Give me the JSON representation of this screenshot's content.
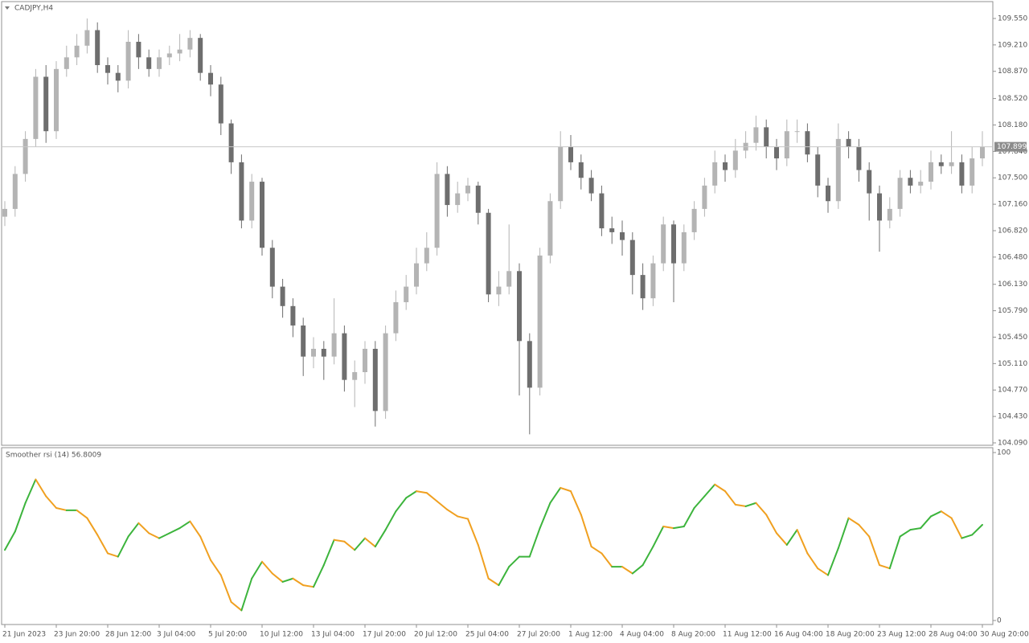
{
  "chart_data": [
    {
      "type": "candlestick",
      "title": "CADJPY,H4",
      "categories": [
        "21 Jun 2023",
        null,
        null,
        null,
        null,
        "23 Jun 20:00",
        null,
        null,
        null,
        null,
        "28 Jun 12:00",
        null,
        null,
        null,
        null,
        "3 Jul 04:00",
        null,
        null,
        null,
        null,
        "5 Jul 20:00",
        null,
        null,
        null,
        null,
        "10 Jul 12:00",
        null,
        null,
        null,
        null,
        "13 Jul 04:00",
        null,
        null,
        null,
        null,
        "17 Jul 20:00",
        null,
        null,
        null,
        null,
        "20 Jul 12:00",
        null,
        null,
        null,
        null,
        "25 Jul 04:00",
        null,
        null,
        null,
        null,
        "27 Jul 20:00",
        null,
        null,
        null,
        null,
        "1 Aug 12:00",
        null,
        null,
        null,
        null,
        "4 Aug 04:00",
        null,
        null,
        null,
        null,
        "8 Aug 20:00",
        null,
        null,
        null,
        null,
        "11 Aug 12:00",
        null,
        null,
        null,
        null,
        "16 Aug 04:00",
        null,
        null,
        null,
        null,
        "18 Aug 20:00",
        null,
        null,
        null,
        null,
        "23 Aug 12:00",
        null,
        null,
        null,
        null,
        "28 Aug 04:00",
        null,
        null,
        null,
        null,
        "30 Aug 20:00"
      ],
      "open": [
        107,
        107.1,
        107.55,
        108,
        108.8,
        108.1,
        108.9,
        109.05,
        109.2,
        109.4,
        108.95,
        108.85,
        108.75,
        109.25,
        109.05,
        108.9,
        109.05,
        109.1,
        109.15,
        109.3,
        108.85,
        108.7,
        108.2,
        107.7,
        106.95,
        107.45,
        106.6,
        106.1,
        105.85,
        105.6,
        105.2,
        105.3,
        105.2,
        105.5,
        104.9,
        105,
        105.3,
        104.5,
        105.5,
        105.9,
        106.1,
        106.4,
        106.6,
        107.55,
        107.15,
        107.3,
        107.4,
        107.05,
        106,
        106.1,
        106.3,
        105.4,
        104.8,
        106.5,
        107.2,
        107.9,
        107.7,
        107.5,
        107.3,
        106.85,
        106.8,
        106.7,
        106.25,
        105.95,
        106.4,
        106.9,
        106.4,
        106.8,
        107.1,
        107.4,
        107.7,
        107.6,
        107.85,
        107.95,
        108.15,
        107.9,
        107.75,
        108.1,
        108.1,
        107.8,
        107.4,
        107.2,
        108,
        107.9,
        107.6,
        107.3,
        106.95,
        107.1,
        107.5,
        107.4,
        107.45,
        107.7,
        107.65,
        107.7,
        107.4,
        107.75
      ],
      "high": [
        107.2,
        107.65,
        108.1,
        108.9,
        108.95,
        109,
        109.2,
        109.35,
        109.55,
        109.5,
        109.05,
        108.95,
        109.4,
        109.35,
        109.15,
        109.15,
        109.2,
        109.35,
        109.4,
        109.35,
        108.95,
        108.8,
        108.25,
        107.8,
        107.55,
        107.5,
        106.7,
        106.2,
        105.95,
        105.7,
        105.45,
        105.4,
        105.95,
        105.6,
        105.15,
        105.4,
        105.4,
        105.6,
        106.05,
        106.25,
        106.6,
        106.8,
        107.7,
        107.65,
        107.45,
        107.5,
        107.45,
        107.1,
        106.3,
        106.9,
        106.4,
        105.5,
        106.6,
        107.3,
        108.1,
        108.05,
        107.8,
        107.6,
        107.4,
        107,
        106.95,
        106.8,
        106.4,
        106.5,
        107,
        106.95,
        106.9,
        107.2,
        107.5,
        107.85,
        107.8,
        108,
        108.1,
        108.3,
        108.25,
        108,
        108.25,
        108.25,
        108.2,
        107.9,
        107.5,
        108.2,
        108.1,
        108,
        107.7,
        107.4,
        107.25,
        107.6,
        107.6,
        107.6,
        107.85,
        107.8,
        108.1,
        107.8,
        107.9,
        108.1
      ],
      "low": [
        106.88,
        107,
        107.45,
        107.9,
        107.95,
        108,
        108.8,
        108.95,
        109.1,
        108.85,
        108.7,
        108.6,
        108.65,
        108.9,
        108.8,
        108.8,
        108.95,
        109,
        109.05,
        108.75,
        108.55,
        108.05,
        107.55,
        106.85,
        106.85,
        106.5,
        105.95,
        105.7,
        105.45,
        104.95,
        105.05,
        104.9,
        105.1,
        104.75,
        104.55,
        104.85,
        104.3,
        104.4,
        105.4,
        105.8,
        106,
        106.3,
        106.5,
        107,
        107.05,
        107.2,
        106.9,
        105.9,
        105.85,
        106,
        104.7,
        104.2,
        104.7,
        106.4,
        107.1,
        107.6,
        107.35,
        107.2,
        106.75,
        106.65,
        106.5,
        106,
        105.8,
        105.85,
        106.3,
        105.9,
        106.3,
        106.7,
        107,
        107.3,
        107.45,
        107.5,
        107.75,
        107.85,
        107.75,
        107.6,
        107.65,
        107.95,
        107.7,
        107.25,
        107.05,
        107.1,
        107.75,
        107.45,
        106.95,
        106.55,
        106.85,
        107,
        107.3,
        107.3,
        107.35,
        107.55,
        107.55,
        107.3,
        107.3,
        107.65
      ],
      "close": [
        107.1,
        107.55,
        108,
        108.8,
        108.1,
        108.9,
        109.05,
        109.2,
        109.4,
        108.95,
        108.85,
        108.75,
        109.25,
        109.05,
        108.9,
        109.05,
        109.1,
        109.15,
        109.3,
        108.85,
        108.7,
        108.2,
        107.7,
        106.95,
        107.45,
        106.6,
        106.1,
        105.85,
        105.6,
        105.2,
        105.3,
        105.2,
        105.5,
        104.9,
        105,
        105.3,
        104.5,
        105.5,
        105.9,
        106.1,
        106.4,
        106.6,
        107.55,
        107.15,
        107.3,
        107.4,
        107.05,
        106,
        106.1,
        106.3,
        105.4,
        104.8,
        106.5,
        107.2,
        107.9,
        107.7,
        107.5,
        107.3,
        106.85,
        106.8,
        106.7,
        106.25,
        105.95,
        106.4,
        106.9,
        106.4,
        106.8,
        107.1,
        107.4,
        107.7,
        107.6,
        107.85,
        107.95,
        108.15,
        107.9,
        107.75,
        108.1,
        108.1,
        107.8,
        107.4,
        107.2,
        108,
        107.9,
        107.6,
        107.3,
        106.95,
        107.1,
        107.5,
        107.4,
        107.45,
        107.7,
        107.65,
        107.7,
        107.4,
        107.75,
        107.9
      ],
      "up_color": "#b4b4b4",
      "down_color": "#6e6e6e",
      "last_price": 107.899,
      "ylim": [
        104.059,
        109.767
      ],
      "yticks": [
        {
          "value": 109.55,
          "label": "109.550"
        },
        {
          "value": 109.21,
          "label": "109.210"
        },
        {
          "value": 108.87,
          "label": "108.870"
        },
        {
          "value": 108.52,
          "label": "108.520"
        },
        {
          "value": 108.18,
          "label": "108.180"
        },
        {
          "value": 107.84,
          "label": "107.840"
        },
        {
          "value": 107.5,
          "label": "107.500"
        },
        {
          "value": 107.16,
          "label": "107.160"
        },
        {
          "value": 106.82,
          "label": "106.820"
        },
        {
          "value": 106.48,
          "label": "106.480"
        },
        {
          "value": 106.13,
          "label": "106.130"
        },
        {
          "value": 105.79,
          "label": "105.790"
        },
        {
          "value": 105.45,
          "label": "105.450"
        },
        {
          "value": 105.11,
          "label": "105.110"
        },
        {
          "value": 104.77,
          "label": "104.770"
        },
        {
          "value": 104.43,
          "label": "104.430"
        },
        {
          "value": 104.09,
          "label": "104.090"
        }
      ]
    },
    {
      "type": "line",
      "title": "Smoother rsi (14) 56.8009",
      "values": [
        42,
        53,
        70,
        84,
        74,
        67,
        65.6,
        65.6,
        61,
        51,
        40,
        38,
        50,
        58,
        52,
        49,
        52,
        55,
        59,
        50,
        36,
        27,
        11,
        6,
        25,
        35,
        28,
        23,
        25,
        21,
        20,
        33,
        48,
        47,
        42,
        49,
        44,
        54,
        65,
        73,
        77,
        76,
        71,
        66,
        62,
        60.5,
        45,
        25,
        21,
        32,
        38,
        38,
        55,
        70,
        79,
        77,
        63,
        44,
        40,
        32,
        32,
        28,
        33,
        44,
        56,
        55,
        56,
        67,
        74,
        81,
        77,
        69,
        68,
        70,
        63,
        52,
        45,
        54,
        40,
        31,
        27,
        43,
        61,
        57,
        50,
        33,
        31,
        50,
        54,
        55,
        62,
        65,
        61,
        49,
        51,
        57
      ],
      "up_color": "#3cb43c",
      "down_color": "#f0a020",
      "ylim": [
        -2.4,
        102.9
      ],
      "yticks": [
        100,
        0
      ]
    }
  ]
}
